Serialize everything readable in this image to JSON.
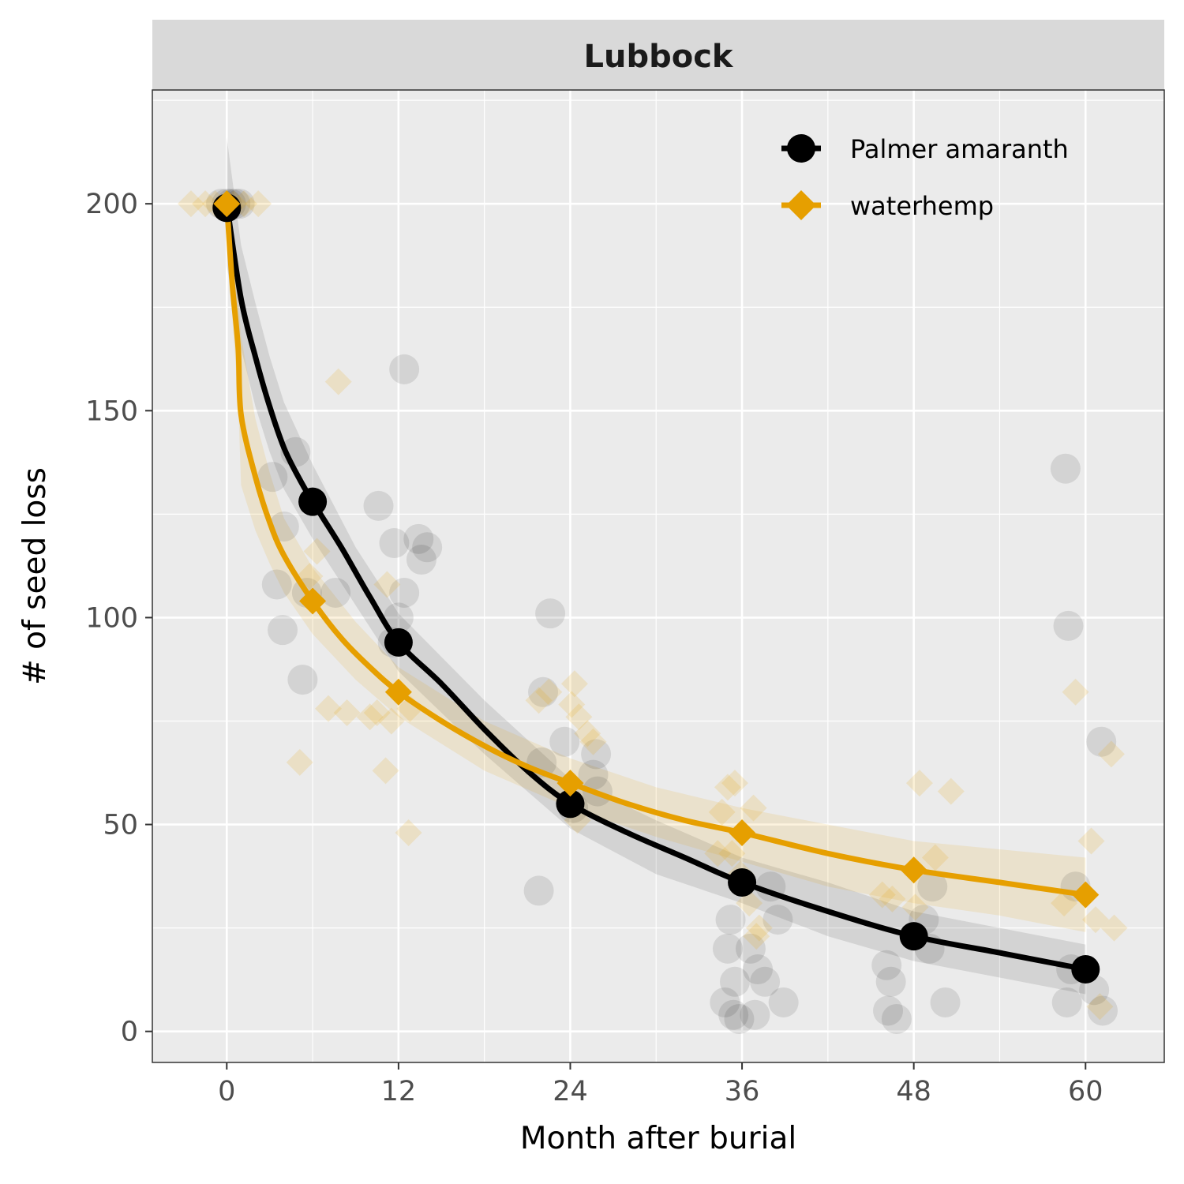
{
  "chart_data": {
    "type": "line",
    "facet_title": "Lubbock",
    "xlabel": "Month after burial",
    "ylabel": "# of seed loss",
    "xlim": [
      -5.2,
      65.5
    ],
    "ylim": [
      -7.5,
      227.5
    ],
    "x_ticks": [
      0,
      12,
      24,
      36,
      48,
      60
    ],
    "y_ticks": [
      0,
      50,
      100,
      150,
      200
    ],
    "x_tick_labels": [
      "0",
      "12",
      "24",
      "36",
      "48",
      "60"
    ],
    "y_tick_labels": [
      "0",
      "50",
      "100",
      "150",
      "200"
    ],
    "grid": true,
    "legend_position": "top-right",
    "colors": {
      "panel_bg": "#EBEBEB",
      "grid": "#FFFFFF",
      "strip_bg": "#D9D9D9",
      "palmer": "#000000",
      "waterhemp": "#E69F00"
    },
    "series": [
      {
        "name": "Palmer amaranth",
        "color": "#000000",
        "marker": "circle",
        "x": [
          0,
          6,
          12,
          24,
          36,
          48,
          60
        ],
        "y": [
          199,
          128,
          94,
          55,
          36,
          23,
          15
        ],
        "fit": [
          [
            0,
            200
          ],
          [
            1,
            177
          ],
          [
            2,
            163
          ],
          [
            3,
            151
          ],
          [
            4,
            141
          ],
          [
            5,
            134
          ],
          [
            6,
            128
          ],
          [
            8,
            117
          ],
          [
            10,
            105
          ],
          [
            12,
            94
          ],
          [
            15,
            84
          ],
          [
            18,
            73
          ],
          [
            21,
            63
          ],
          [
            24,
            55
          ],
          [
            28,
            48
          ],
          [
            32,
            42
          ],
          [
            36,
            36
          ],
          [
            42,
            29
          ],
          [
            48,
            23
          ],
          [
            54,
            19
          ],
          [
            60,
            15
          ]
        ],
        "band_upper": [
          [
            0,
            216
          ],
          [
            1,
            190
          ],
          [
            2,
            176
          ],
          [
            3,
            163
          ],
          [
            4,
            152
          ],
          [
            6,
            137
          ],
          [
            9,
            117
          ],
          [
            12,
            101
          ],
          [
            18,
            80
          ],
          [
            24,
            61
          ],
          [
            30,
            51
          ],
          [
            36,
            42
          ],
          [
            42,
            36
          ],
          [
            48,
            29
          ],
          [
            54,
            25
          ],
          [
            60,
            21
          ]
        ],
        "band_lower": [
          [
            0,
            185
          ],
          [
            1,
            165
          ],
          [
            2,
            151
          ],
          [
            3,
            140
          ],
          [
            4,
            131
          ],
          [
            6,
            119
          ],
          [
            9,
            103
          ],
          [
            12,
            87
          ],
          [
            18,
            67
          ],
          [
            24,
            49
          ],
          [
            30,
            38
          ],
          [
            36,
            31
          ],
          [
            42,
            23
          ],
          [
            48,
            17
          ],
          [
            54,
            13
          ],
          [
            60,
            9
          ]
        ],
        "raw_points": [
          [
            0,
            200
          ],
          [
            0.3,
            200
          ],
          [
            0.6,
            200
          ],
          [
            -0.4,
            200
          ],
          [
            0.9,
            200
          ],
          [
            3.2,
            134
          ],
          [
            4.8,
            140
          ],
          [
            4,
            122
          ],
          [
            3.5,
            108
          ],
          [
            5.6,
            106
          ],
          [
            7.6,
            106
          ],
          [
            3.9,
            97
          ],
          [
            5.3,
            85
          ],
          [
            10.6,
            127
          ],
          [
            11.7,
            118
          ],
          [
            12.4,
            106
          ],
          [
            12,
            100
          ],
          [
            11.6,
            94
          ],
          [
            12.4,
            160
          ],
          [
            13.4,
            119
          ],
          [
            13.6,
            114
          ],
          [
            14,
            117
          ],
          [
            22.6,
            101
          ],
          [
            22.1,
            82
          ],
          [
            23.6,
            70
          ],
          [
            22,
            65
          ],
          [
            21.8,
            34
          ],
          [
            25.8,
            67
          ],
          [
            25.6,
            62
          ],
          [
            25.9,
            58
          ],
          [
            24.2,
            54
          ],
          [
            35,
            20
          ],
          [
            35.2,
            27
          ],
          [
            35.5,
            12
          ],
          [
            34.8,
            7
          ],
          [
            35.4,
            4
          ],
          [
            35.8,
            3
          ],
          [
            36.6,
            20
          ],
          [
            37.1,
            15
          ],
          [
            37.6,
            12
          ],
          [
            36.9,
            4
          ],
          [
            38,
            35
          ],
          [
            38.5,
            27
          ],
          [
            38.9,
            7
          ],
          [
            46.2,
            5
          ],
          [
            46.8,
            3
          ],
          [
            46.4,
            12
          ],
          [
            46.1,
            16
          ],
          [
            48.7,
            27
          ],
          [
            49.3,
            35
          ],
          [
            49.1,
            20
          ],
          [
            50.2,
            7
          ],
          [
            58.6,
            136
          ],
          [
            58.8,
            98
          ],
          [
            58.7,
            7
          ],
          [
            59,
            15
          ],
          [
            59.3,
            35
          ],
          [
            61.1,
            70
          ],
          [
            60.6,
            10
          ],
          [
            61.2,
            5
          ]
        ]
      },
      {
        "name": "waterhemp",
        "color": "#E69F00",
        "marker": "diamond",
        "x": [
          0,
          6,
          12,
          24,
          36,
          48,
          60
        ],
        "y": [
          200,
          104,
          82,
          60,
          48,
          39,
          33
        ],
        "fit": [
          [
            0,
            200
          ],
          [
            0.4,
            180
          ],
          [
            0.8,
            165
          ],
          [
            1,
            149
          ],
          [
            2,
            134
          ],
          [
            3,
            123
          ],
          [
            4,
            115
          ],
          [
            6,
            104
          ],
          [
            8,
            95
          ],
          [
            10,
            88
          ],
          [
            12,
            82
          ],
          [
            15,
            75
          ],
          [
            18,
            69
          ],
          [
            21,
            64
          ],
          [
            24,
            60
          ],
          [
            28,
            55
          ],
          [
            32,
            51
          ],
          [
            36,
            48
          ],
          [
            42,
            43
          ],
          [
            48,
            39
          ],
          [
            54,
            36
          ],
          [
            60,
            33
          ]
        ],
        "band_upper": [
          [
            0,
            200
          ],
          [
            0.4,
            190
          ],
          [
            0.8,
            178
          ],
          [
            1,
            168
          ],
          [
            2,
            148
          ],
          [
            3,
            135
          ],
          [
            4,
            124
          ],
          [
            6,
            112
          ],
          [
            9,
            99
          ],
          [
            12,
            88
          ],
          [
            18,
            75
          ],
          [
            24,
            66
          ],
          [
            30,
            59
          ],
          [
            36,
            54
          ],
          [
            42,
            50
          ],
          [
            48,
            46
          ],
          [
            54,
            44
          ],
          [
            60,
            42
          ]
        ],
        "band_lower": [
          [
            0,
            200
          ],
          [
            0.4,
            172
          ],
          [
            0.8,
            152
          ],
          [
            1,
            132
          ],
          [
            2,
            121
          ],
          [
            3,
            113
          ],
          [
            4,
            106
          ],
          [
            6,
            96
          ],
          [
            9,
            85
          ],
          [
            12,
            76
          ],
          [
            18,
            63
          ],
          [
            24,
            54
          ],
          [
            30,
            47
          ],
          [
            36,
            41
          ],
          [
            42,
            35
          ],
          [
            48,
            31
          ],
          [
            54,
            28
          ],
          [
            60,
            24
          ]
        ],
        "raw_points": [
          [
            -2.5,
            200
          ],
          [
            -1.5,
            200
          ],
          [
            -0.8,
            200
          ],
          [
            0.5,
            200
          ],
          [
            1.2,
            200
          ],
          [
            2.2,
            200
          ],
          [
            5.1,
            65
          ],
          [
            5.8,
            110
          ],
          [
            6.3,
            116
          ],
          [
            7.1,
            78
          ],
          [
            7.8,
            157
          ],
          [
            8.4,
            77
          ],
          [
            10,
            76
          ],
          [
            10.5,
            77
          ],
          [
            11.2,
            108
          ],
          [
            11.1,
            63
          ],
          [
            11.5,
            75
          ],
          [
            12.8,
            78
          ],
          [
            12.7,
            48
          ],
          [
            21.8,
            80
          ],
          [
            22.5,
            82
          ],
          [
            24.3,
            84
          ],
          [
            24.1,
            79
          ],
          [
            24.6,
            76
          ],
          [
            25.2,
            72
          ],
          [
            25.6,
            70
          ],
          [
            24.5,
            51
          ],
          [
            34.3,
            43
          ],
          [
            34.6,
            53
          ],
          [
            35,
            59
          ],
          [
            35.5,
            60
          ],
          [
            35.3,
            43
          ],
          [
            35.9,
            38
          ],
          [
            36.5,
            31
          ],
          [
            36.8,
            54
          ],
          [
            37.2,
            25
          ],
          [
            37,
            23
          ],
          [
            45.8,
            33
          ],
          [
            46.5,
            32
          ],
          [
            48.4,
            60
          ],
          [
            49.5,
            42
          ],
          [
            48.1,
            30
          ],
          [
            50.6,
            58
          ],
          [
            58.5,
            31
          ],
          [
            59.3,
            82
          ],
          [
            60.4,
            46
          ],
          [
            60.7,
            27
          ],
          [
            61.8,
            67
          ],
          [
            62,
            25
          ],
          [
            61,
            6
          ]
        ]
      }
    ]
  }
}
